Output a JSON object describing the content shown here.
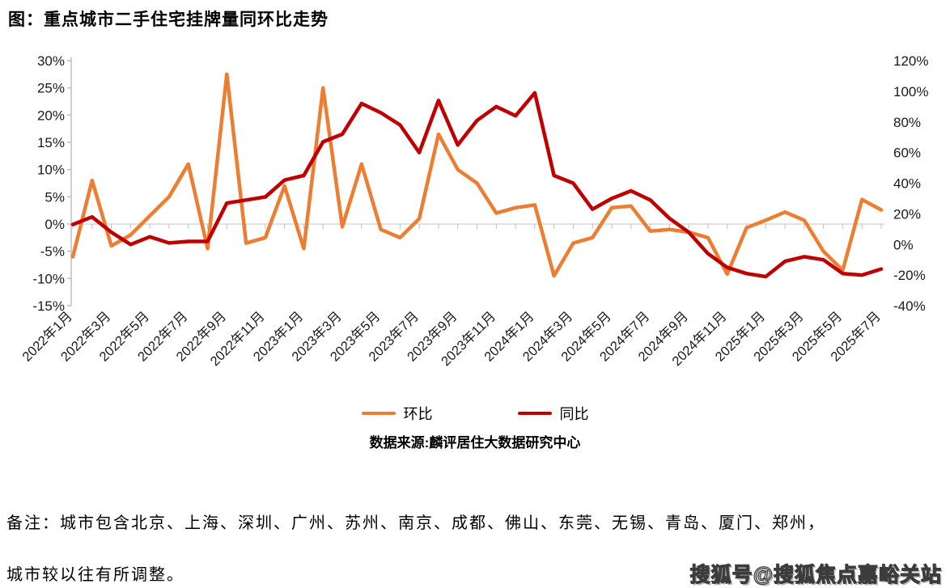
{
  "header": {
    "title": "图：重点城市二手住宅挂牌量同环比走势"
  },
  "legend": {
    "items": [
      {
        "label": "环比",
        "color": "#ED7D31"
      },
      {
        "label": "同比",
        "color": "#C00000"
      }
    ]
  },
  "footer": {
    "source": "数据来源:麟评居住大数据研究中心",
    "note_line1": "备注：城市包含北京、上海、深圳、广州、苏州、南京、成都、佛山、东莞、无锡、青岛、厦门、郑州，",
    "note_line2": "城市较以往有所调整。",
    "watermark": "搜狐号@搜狐焦点嘉峪关站"
  },
  "chart_data": {
    "type": "line",
    "title": "重点城市二手住宅挂牌量同环比走势",
    "x": [
      "2022年1月",
      "2022年2月",
      "2022年3月",
      "2022年4月",
      "2022年5月",
      "2022年6月",
      "2022年7月",
      "2022年8月",
      "2022年9月",
      "2022年10月",
      "2022年11月",
      "2022年12月",
      "2023年1月",
      "2023年2月",
      "2023年3月",
      "2023年4月",
      "2023年5月",
      "2023年6月",
      "2023年7月",
      "2023年8月",
      "2023年9月",
      "2023年10月",
      "2023年11月",
      "2023年12月",
      "2024年1月",
      "2024年2月",
      "2024年3月",
      "2024年4月",
      "2024年5月",
      "2024年6月",
      "2024年7月",
      "2024年8月",
      "2024年9月",
      "2024年10月",
      "2024年11月",
      "2024年12月",
      "2025年1月",
      "2025年2月",
      "2025年3月",
      "2025年4月",
      "2025年5月",
      "2025年6月",
      "2025年7月"
    ],
    "x_tick_every": 2,
    "series": [
      {
        "name": "环比",
        "axis": "left",
        "color": "#ED7D31",
        "values": [
          -6,
          8,
          -4,
          -2,
          1.5,
          5,
          11,
          -4.5,
          27.5,
          -3.5,
          -2.5,
          7,
          -4.5,
          25,
          -0.5,
          11,
          -1,
          -2.5,
          1,
          16.5,
          10,
          7.5,
          2,
          3,
          3.5,
          -9.5,
          -3.5,
          -2.5,
          3,
          3.3,
          -1.3,
          -1,
          -1.5,
          -2.5,
          -9.2,
          -0.7,
          0.7,
          2.2,
          0.7,
          -5,
          -8.5,
          4.5,
          2.6
        ]
      },
      {
        "name": "同比",
        "axis": "right",
        "color": "#C00000",
        "values": [
          13,
          18,
          8,
          0,
          5,
          1,
          2,
          2,
          27,
          29,
          31,
          42,
          45,
          67,
          72,
          92,
          86,
          78,
          60,
          94,
          65,
          81,
          90,
          84,
          99,
          45,
          40,
          23,
          30,
          35,
          29,
          17,
          8,
          -6,
          -15,
          -19,
          -21,
          -11,
          -8,
          -10,
          -19,
          -20,
          -16
        ]
      }
    ],
    "left_axis": {
      "min": -15,
      "max": 30,
      "step": 5,
      "suffix": "%"
    },
    "right_axis": {
      "min": -40,
      "max": 120,
      "step": 20,
      "suffix": "%"
    },
    "grid": "zero-line-only",
    "legend_position": "bottom",
    "colors": {
      "gridline": "#D9D9D9",
      "axis": "#BFBFBF",
      "tick_text": "#1a1a1a"
    }
  }
}
